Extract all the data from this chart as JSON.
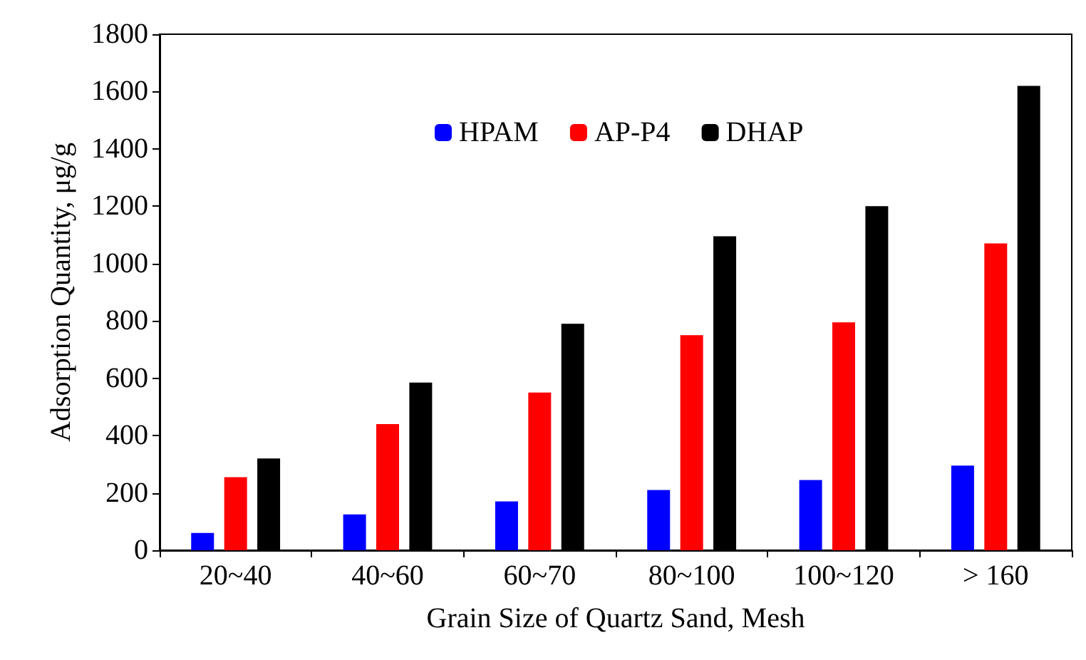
{
  "chart_data": {
    "type": "bar",
    "xlabel": "Grain Size of Quartz Sand, Mesh",
    "ylabel": "Adsorption Quantity, μg/g",
    "categories": [
      "20~40",
      "40~60",
      "60~70",
      "80~100",
      "100~120",
      "> 160"
    ],
    "series": [
      {
        "name": "HPAM",
        "color": "#0000ff",
        "values": [
          60,
          125,
          170,
          210,
          245,
          295
        ]
      },
      {
        "name": "AP-P4",
        "color": "#ff0000",
        "values": [
          255,
          440,
          550,
          750,
          795,
          1070
        ]
      },
      {
        "name": "DHAP",
        "color": "#000000",
        "values": [
          320,
          585,
          790,
          1095,
          1200,
          1620
        ]
      }
    ],
    "ylim": [
      0,
      1800
    ],
    "yticks": [
      0,
      200,
      400,
      600,
      800,
      1000,
      1200,
      1400,
      1600,
      1800
    ],
    "grid": false,
    "legend": "top"
  }
}
